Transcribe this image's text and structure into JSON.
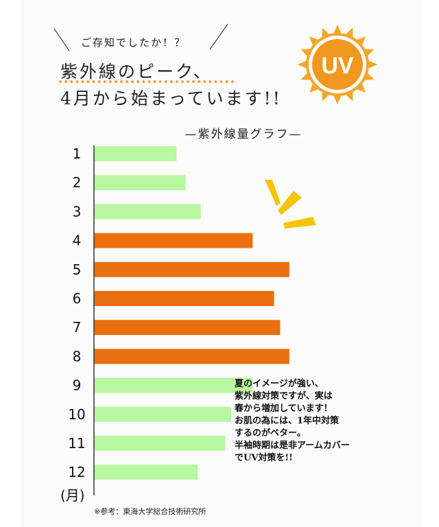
{
  "header": {
    "kicker": "ご存知でしたか！？",
    "headline_line1": "紫外線のピーク、",
    "headline_line2": "4月から始まっています!!"
  },
  "badge": {
    "label": "UV",
    "sun_color": "#f4a62a",
    "disc_color": "#f0981f"
  },
  "chart_data": {
    "type": "bar",
    "orientation": "horizontal",
    "title": "—紫外線量グラフ—",
    "categories": [
      "1",
      "2",
      "3",
      "4",
      "5",
      "6",
      "7",
      "8",
      "9",
      "10",
      "11",
      "12"
    ],
    "values": [
      2.7,
      3.0,
      3.5,
      5.2,
      6.4,
      5.9,
      6.1,
      6.4,
      5.2,
      4.5,
      4.3,
      3.4
    ],
    "highlight_categories": [
      "4",
      "5",
      "6",
      "7",
      "8"
    ],
    "unit_label": "(月)",
    "xlim": [
      0,
      7
    ],
    "colors": {
      "normal": "#b9f7a0",
      "highlight": "#ea6f10",
      "axis": "#333333"
    }
  },
  "note": {
    "lines": [
      "夏のイメージが強い、",
      "紫外線対策ですが、実は",
      "春から増加しています！",
      "お肌の為には、1年中対策",
      "するのがベター。",
      "半袖時期は是非アームカバー",
      "でUV対策を!!"
    ]
  },
  "source": "※参考：東海大学総合技術研究所"
}
